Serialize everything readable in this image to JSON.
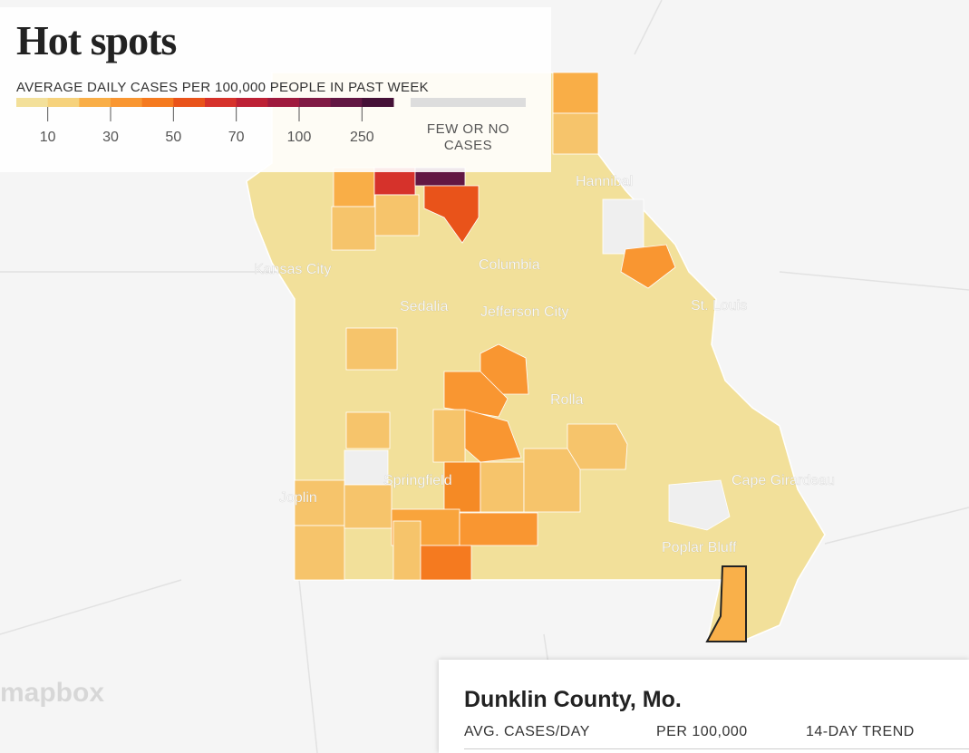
{
  "header": {
    "title": "Hot spots"
  },
  "legend": {
    "label": "AVERAGE DAILY CASES PER 100,000 PEOPLE IN PAST WEEK",
    "colors": [
      "#f3e09a",
      "#f6d27c",
      "#f9ae47",
      "#f99631",
      "#f57a1f",
      "#e9531a",
      "#d6322b",
      "#bd2035",
      "#9f1a3d",
      "#801a44",
      "#621743",
      "#451137"
    ],
    "ticks": [
      10,
      30,
      50,
      70,
      100,
      250
    ],
    "no_cases_label": "FEW OR NO CASES",
    "no_cases_color": "#dddddd"
  },
  "map": {
    "cities": [
      "Hannibal",
      "Kansas City",
      "Columbia",
      "Sedalia",
      "Jefferson City",
      "St. Louis",
      "Rolla",
      "Springfield",
      "Joplin",
      "Cape Girardeau",
      "Poplar Bluff"
    ],
    "attribution": "mapbox"
  },
  "panel": {
    "title": "Dunklin County, Mo.",
    "columns": [
      "AVG. CASES/DAY",
      "PER 100,000",
      "14-DAY TREND"
    ]
  }
}
